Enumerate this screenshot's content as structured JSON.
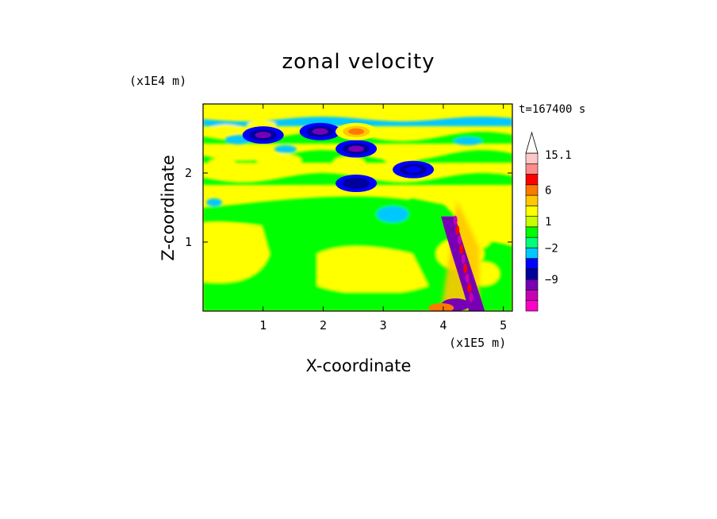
{
  "chart_data": {
    "type": "heatmap",
    "title": "zonal velocity",
    "xlabel": "X-coordinate",
    "ylabel": "Z-coordinate",
    "x_unit_label": "(x1E5 m)",
    "y_unit_label": "(x1E4 m)",
    "time_label": "t=167400 s",
    "xlim": [
      0,
      5.15
    ],
    "ylim": [
      0,
      3.0
    ],
    "x_ticks": [
      1,
      2,
      3,
      4,
      5
    ],
    "y_ticks": [
      1,
      2
    ],
    "colorbar": {
      "levels": [
        -15,
        -12,
        -9,
        -6,
        -4,
        -2,
        -1,
        0,
        1,
        2,
        4,
        6,
        9,
        12,
        15.1
      ],
      "colors": [
        "#ff00c8",
        "#c800b4",
        "#7800b4",
        "#00009c",
        "#0000ff",
        "#00c8ff",
        "#00ff78",
        "#00ff00",
        "#c8ff00",
        "#ffff00",
        "#ffc800",
        "#ff7800",
        "#ff0000",
        "#ff8c8c",
        "#ffc8c8"
      ],
      "tick_labels": [
        "15.1",
        "6",
        "1",
        "−2",
        "−9"
      ],
      "extend": "max"
    },
    "grid": false,
    "features": [
      {
        "type": "negative_core",
        "x": 1.0,
        "z": 2.55,
        "value": -8
      },
      {
        "type": "negative_core",
        "x": 1.95,
        "z": 2.6,
        "value": -8
      },
      {
        "type": "negative_core",
        "x": 2.55,
        "z": 2.35,
        "value": -7
      },
      {
        "type": "positive_core",
        "x": 2.55,
        "z": 2.6,
        "value": 7
      },
      {
        "type": "negative_core",
        "x": 2.55,
        "z": 1.85,
        "value": -5
      },
      {
        "type": "negative_core",
        "x": 3.5,
        "z": 2.05,
        "value": -3
      },
      {
        "type": "wave_zone",
        "x_range": [
          3.7,
          4.6
        ],
        "z_range": [
          0,
          1.6
        ],
        "min": -12,
        "max": 12
      }
    ]
  }
}
